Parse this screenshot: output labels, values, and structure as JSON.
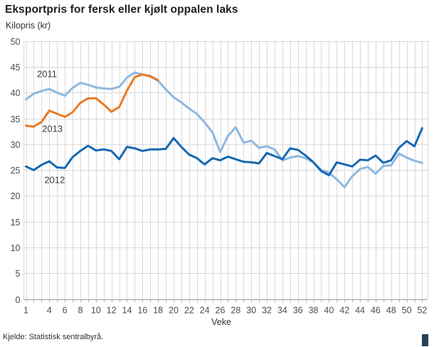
{
  "title": "Eksportpris for fersk eller kjølt oppalen laks",
  "source": "Kjelde: Statistisk sentralbyrå.",
  "logo_color": "#274257",
  "chart_data": {
    "type": "line",
    "title": "Eksportpris for fersk eller kjølt oppalen laks",
    "xlabel": "Veke",
    "ylabel": "Kilopris (kr)",
    "xlim": [
      1,
      52
    ],
    "ylim": [
      0,
      50
    ],
    "x_ticks": [
      1,
      4,
      6,
      8,
      10,
      12,
      14,
      16,
      18,
      20,
      22,
      24,
      26,
      28,
      30,
      32,
      34,
      36,
      38,
      40,
      42,
      44,
      46,
      48,
      50,
      52
    ],
    "y_ticks": [
      0,
      5,
      10,
      15,
      20,
      25,
      30,
      35,
      40,
      45,
      50
    ],
    "grid": {
      "vertical": "every week 1-52",
      "horizontal": "every 5 kr"
    },
    "legend_position": "inline-labels",
    "series": [
      {
        "name": "2011",
        "color": "#8db8e1",
        "start_week": 1,
        "label_anchor": {
          "week": 3.7,
          "value": 43.6
        },
        "values": [
          38.7,
          39.8,
          40.3,
          40.7,
          40.0,
          39.4,
          40.9,
          41.9,
          41.5,
          41.0,
          40.8,
          40.7,
          41.1,
          42.9,
          43.9,
          43.5,
          43.1,
          42.3,
          40.6,
          39.1,
          38.1,
          36.9,
          35.9,
          34.2,
          32.3,
          28.5,
          31.6,
          33.3,
          30.3,
          30.7,
          29.3,
          29.6,
          29.0,
          26.9,
          27.4,
          27.7,
          27.3,
          26.5,
          25.0,
          24.5,
          23.2,
          21.7,
          23.8,
          25.2,
          25.6,
          24.3,
          25.8,
          25.9,
          28.2,
          27.4,
          26.8,
          26.4
        ]
      },
      {
        "name": "2013",
        "color": "#e97926",
        "start_week": 1,
        "label_anchor": {
          "week": 4.4,
          "value": 33.0
        },
        "values": [
          33.6,
          33.4,
          34.3,
          36.5,
          35.9,
          35.3,
          36.2,
          38.0,
          38.9,
          38.9,
          37.7,
          36.3,
          37.2,
          40.4,
          43.0,
          43.5,
          43.2,
          42.4
        ]
      },
      {
        "name": "2012",
        "color": "#1668b2",
        "start_week": 1,
        "label_anchor": {
          "week": 4.7,
          "value": 23.1
        },
        "values": [
          25.7,
          25.0,
          26.0,
          26.7,
          25.5,
          25.4,
          27.5,
          28.7,
          29.7,
          28.8,
          29.0,
          28.7,
          27.1,
          29.5,
          29.2,
          28.7,
          29.0,
          29.0,
          29.1,
          31.2,
          29.5,
          28.0,
          27.3,
          26.1,
          27.3,
          26.9,
          27.6,
          27.1,
          26.6,
          26.5,
          26.3,
          28.3,
          27.7,
          27.1,
          29.2,
          28.9,
          27.8,
          26.5,
          24.8,
          24.0,
          26.5,
          26.1,
          25.7,
          27.0,
          26.9,
          27.8,
          26.4,
          26.9,
          29.3,
          30.6,
          29.6,
          33.1
        ]
      }
    ]
  }
}
